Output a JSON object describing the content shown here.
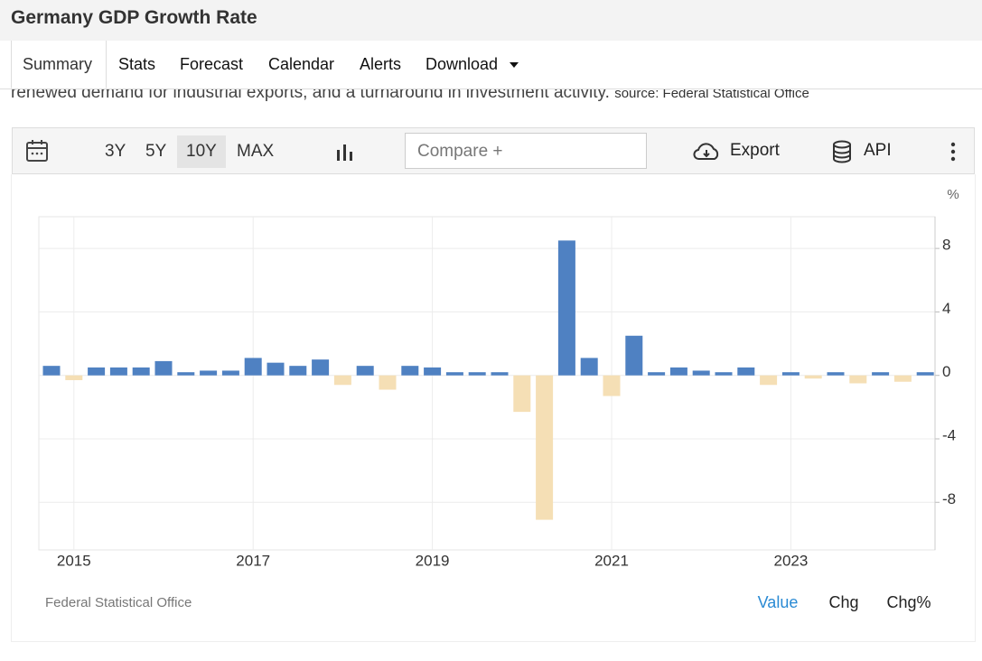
{
  "header": {
    "title": "Germany GDP Growth Rate"
  },
  "tabs": [
    "Summary",
    "Stats",
    "Forecast",
    "Calendar",
    "Alerts",
    "Download"
  ],
  "description": {
    "text": "renewed demand for industrial exports, and a turnaround in investment activity.",
    "source": "source: Federal Statistical Office"
  },
  "toolbar": {
    "ranges": [
      "3Y",
      "5Y",
      "10Y",
      "MAX"
    ],
    "active_range": 2,
    "compare": "Compare +",
    "export": "Export",
    "api": "API"
  },
  "chart_data": {
    "type": "bar",
    "unit": "%",
    "categories": [
      null,
      "2015",
      null,
      null,
      null,
      null,
      null,
      null,
      null,
      "2017",
      null,
      null,
      null,
      null,
      null,
      null,
      null,
      "2019",
      null,
      null,
      null,
      null,
      null,
      null,
      null,
      "2021",
      null,
      null,
      null,
      null,
      null,
      null,
      null,
      "2023",
      null,
      null,
      null,
      null,
      null,
      null
    ],
    "values": [
      0.6,
      -0.3,
      0.5,
      0.5,
      0.5,
      0.9,
      0.2,
      0.3,
      0.3,
      1.1,
      0.8,
      0.6,
      1.0,
      -0.6,
      0.6,
      -0.9,
      0.6,
      0.5,
      0.2,
      0.2,
      0.2,
      -2.3,
      -9.1,
      8.5,
      1.1,
      -1.3,
      2.5,
      0.2,
      0.5,
      0.3,
      0.2,
      0.5,
      -0.6,
      0.2,
      -0.2,
      0.2,
      -0.5,
      0.2,
      -0.4,
      0.2
    ],
    "color": "#4f81c2",
    "negative_color": "#f5dfb5",
    "ylim": [
      -11,
      10
    ],
    "yticks": [
      8,
      4,
      0,
      -4,
      -8
    ],
    "grid": true,
    "source": "Federal Statistical Office",
    "views": [
      "Value",
      "Chg",
      "Chg%"
    ],
    "active_view": 0
  }
}
